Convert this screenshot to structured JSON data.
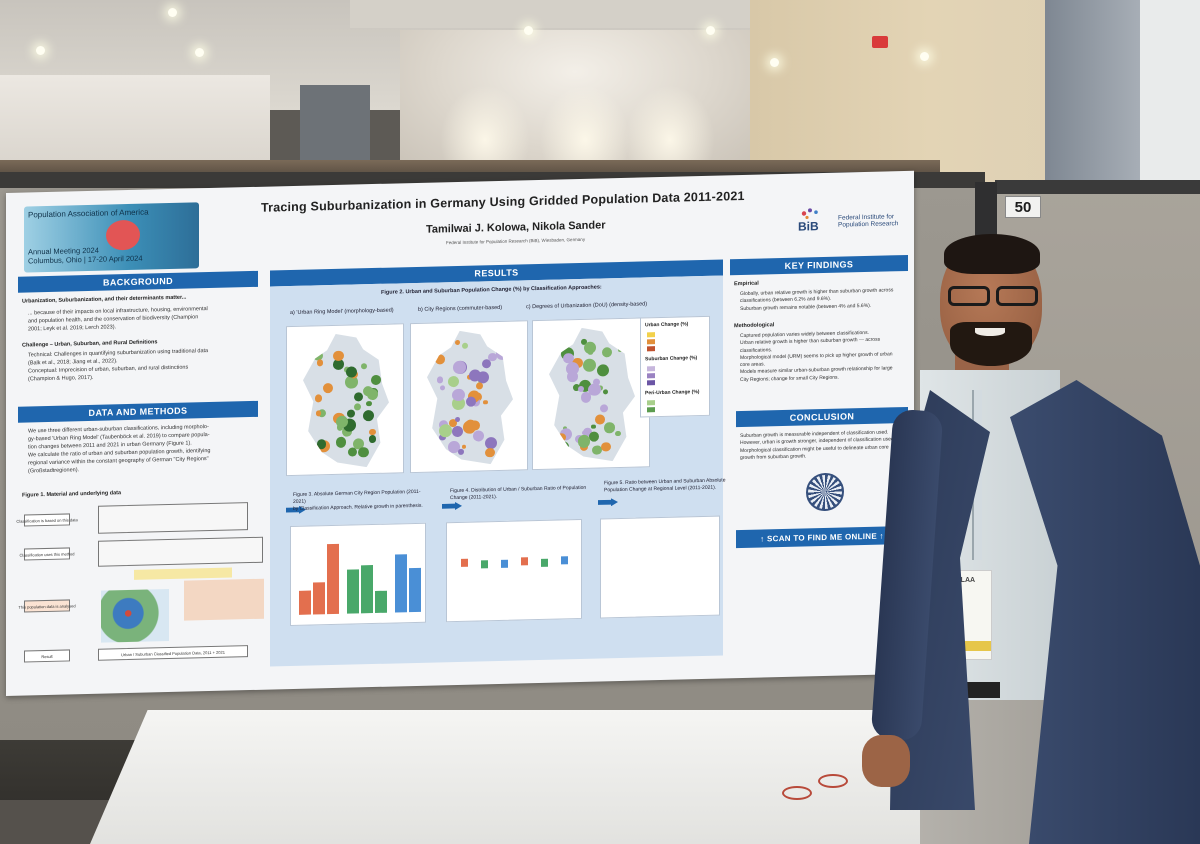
{
  "booth_number": "50",
  "poster": {
    "conference": {
      "name": "Population Association of America",
      "meeting": "Annual Meeting 2024",
      "location_dates": "Columbus, Ohio | 17-20 April 2024"
    },
    "title": "Tracing Suburbanization in Germany Using Gridded Population Data 2011-2021",
    "authors": "Tamilwai J. Kolowa, Nikola Sander",
    "affiliation": "Federal Institute for Population Research (BiB), Wiesbaden, Germany",
    "institute_logo": "BiB",
    "institute_name": "Federal Institute for Population Research",
    "sections": {
      "background": {
        "heading": "BACKGROUND",
        "subheading": "Urbanization, Suburbanization, and their determinants matter...",
        "lines": [
          "... because of their impacts on local infrastructure, housing, environmental",
          "and population health, and the conservation of biodiversity (Champion",
          "2001; Leyk et al. 2019; Lerch 2023)."
        ],
        "challenge_heading": "Challenge – Urban, Suburban, and Rural Definitions",
        "challenge_lines": [
          "Technical: Challenges in quantifying suburbanization using traditional data",
          "(Balk et al., 2018; Jiang et al., 2022).",
          "Conceptual: Imprecision of urban, suburban, and rural distinctions",
          "(Champion & Hugo, 2017)."
        ]
      },
      "data_methods": {
        "heading": "DATA AND METHODS",
        "lines": [
          "We use three different urban-suburban classifications, including morpholo-",
          "gy-based 'Urban Ring Model' (Taubenböck et al. 2019) to compare popula-",
          "tion changes between 2011 and 2021 in urban Germany (Figure 1).",
          "We calculate the ratio of urban and suburban population growth, identifying",
          "regional variance within the constant geography of German \"City Regions\"",
          "(Großstadtregionen)."
        ],
        "figure_caption": "Figure 1. Material and underlying data",
        "flow_labels": [
          "Classification is based on this data",
          "Classification uses this method",
          "This population data is analysed",
          "Result"
        ],
        "footer_label": "Urban / Suburban Classified Population Data, 2011 + 2021"
      },
      "results": {
        "heading": "RESULTS",
        "figure2_title": "Figure 2. Urban and Suburban Population Change (%) by Classification Approaches:",
        "maps": [
          {
            "caption": "a) 'Urban Ring Model' (morphology-based)"
          },
          {
            "caption": "b) City Regions (commuter-based)"
          },
          {
            "caption": "c) Degrees of Urbanization (DoU) (density-based)"
          }
        ],
        "legend": {
          "urban_title": "Urban Change (%)",
          "suburban_title": "Suburban Change (%)",
          "periurban_title": "Peri-Urban Change (%)"
        },
        "figure3_caption": "Figure 3. Absolute German City Region Population (2011-2021)",
        "figure3_sub": "by Classification Approach. Relative growth in parenthesis.",
        "figure4_caption": "Figure 4. Distribution of Urban / Suburban Ratio of Population Change (2011-2021).",
        "figure5_caption": "Figure 5. Ratio between Urban and Suburban Absolute Population Change at Regional Level (2011-2021)."
      },
      "key_findings": {
        "heading": "KEY FINDINGS",
        "empirical_label": "Empirical",
        "empirical": [
          "Globally, urban relative growth is higher than suburban growth across",
          "classifications (between 6.2% and 9.6%).",
          "Suburban growth remains notable (between 4% and 5.6%)."
        ],
        "methodological_label": "Methodological",
        "methodological": [
          "Captured population varies widely between classifications.",
          "Urban relative growth is higher than suburban growth — across",
          "classifications.",
          "Morphological model (URM) seems to pick up higher growth of urban",
          "core areas.",
          "Models measure similar urban-suburban growth relationship for large",
          "City Regions; change for small City Regions."
        ]
      },
      "conclusion": {
        "heading": "CONCLUSION",
        "lines": [
          "Suburban growth is measurable independent of classification used.",
          "However, urban is growth stronger, independent of classification used.",
          "Morphological classification might be useful to delineate urban core",
          "growth from suburban growth."
        ]
      },
      "scan_label": "SCAN TO FIND ME ONLINE"
    }
  },
  "badge": {
    "label": "PLAA"
  }
}
